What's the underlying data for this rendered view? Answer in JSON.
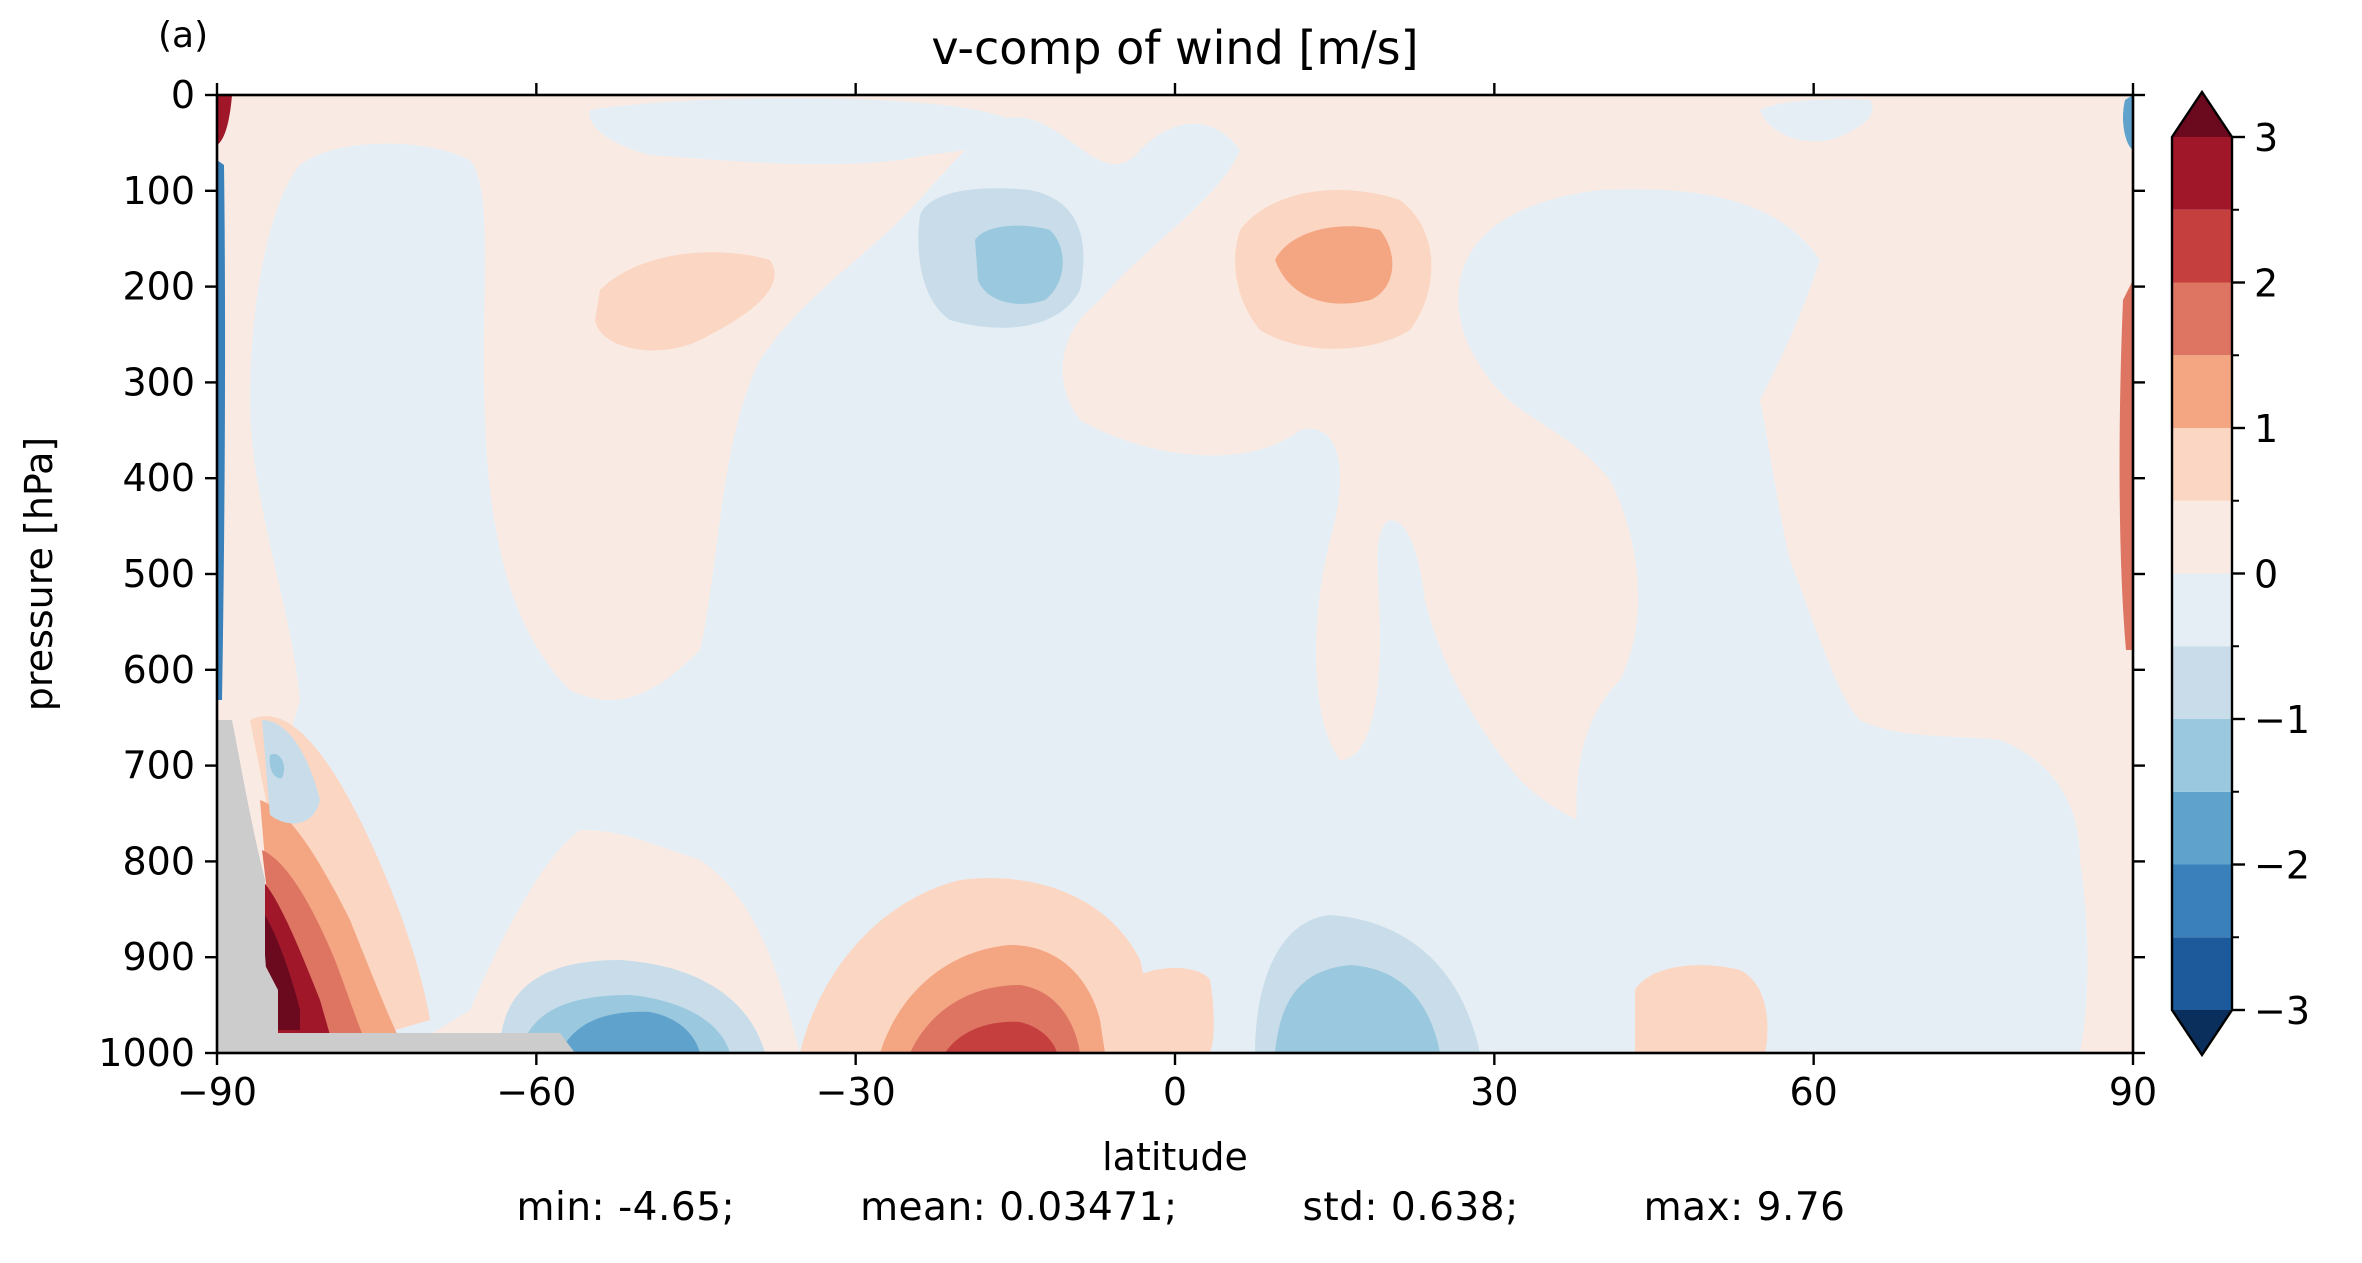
{
  "panel_label": "(a)",
  "colors": {
    "pos": [
      "#f9ebe3",
      "#fbd6c2",
      "#f4a683",
      "#dd7562",
      "#c53f3f",
      "#a0172a",
      "#6b0a1f"
    ],
    "neg": [
      "#e6eef5",
      "#c8dde9",
      "#9ac8de",
      "#5fa3cd",
      "#3a80bb",
      "#1c5a9c",
      "#0b2f5c"
    ],
    "land": "#cccccc"
  },
  "chart_data": {
    "type": "heatmap",
    "title": "v-comp of wind [m/s]",
    "xlabel": "latitude",
    "ylabel": "pressure [hPa]",
    "xlim": [
      -90,
      90
    ],
    "ylim": [
      1000,
      0
    ],
    "xticks": [
      -90,
      -60,
      -30,
      0,
      30,
      60,
      90
    ],
    "xtick_labels": [
      "−90",
      "−60",
      "−30",
      "0",
      "30",
      "60",
      "90"
    ],
    "yticks": [
      0,
      100,
      200,
      300,
      400,
      500,
      600,
      700,
      800,
      900,
      1000
    ],
    "ytick_labels": [
      "0",
      "100",
      "200",
      "300",
      "400",
      "500",
      "600",
      "700",
      "800",
      "900",
      "1000"
    ],
    "colorbar": {
      "levels": [
        -3,
        -2.5,
        -2,
        -1.5,
        -1,
        -0.5,
        0,
        0.5,
        1,
        1.5,
        2,
        2.5,
        3
      ],
      "tick_values": [
        3,
        2,
        1,
        0,
        -1,
        -2,
        -3
      ],
      "tick_labels": [
        "3",
        "2",
        "1",
        "0",
        "−1",
        "−2",
        "−3"
      ],
      "extend": "both"
    },
    "features": [
      {
        "lat": -42,
        "p": 215,
        "v": 0.7
      },
      {
        "lat": -14,
        "p": 190,
        "v": -1.4
      },
      {
        "lat": 14,
        "p": 195,
        "v": 1.2
      },
      {
        "lat": -16,
        "p": 1000,
        "v": 2.3
      },
      {
        "lat": -47,
        "p": 980,
        "v": -1.9
      },
      {
        "lat": 15,
        "p": 960,
        "v": -1.7
      },
      {
        "lat": 50,
        "p": 960,
        "v": 0.6
      },
      {
        "lat": -84,
        "p": 880,
        "v": 3.2
      },
      {
        "lat": -78,
        "p": 930,
        "v": 2.4
      }
    ],
    "masked_region": "orography"
  },
  "stats": {
    "min": "min: -4.65;",
    "mean": "mean: 0.03471;",
    "std": "std: 0.638;",
    "max": "max: 9.76"
  }
}
